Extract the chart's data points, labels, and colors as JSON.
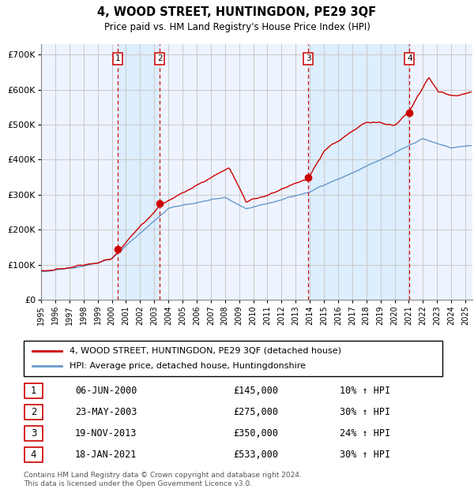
{
  "title": "4, WOOD STREET, HUNTINGDON, PE29 3QF",
  "subtitle": "Price paid vs. HM Land Registry's House Price Index (HPI)",
  "legend_line1": "4, WOOD STREET, HUNTINGDON, PE29 3QF (detached house)",
  "legend_line2": "HPI: Average price, detached house, Huntingdonshire",
  "transactions": [
    {
      "num": 1,
      "date": "06-JUN-2000",
      "year": 2000.44,
      "price": 145000,
      "pct": "10%",
      "dir": "↑"
    },
    {
      "num": 2,
      "date": "23-MAY-2003",
      "year": 2003.39,
      "price": 275000,
      "pct": "30%",
      "dir": "↑"
    },
    {
      "num": 3,
      "date": "19-NOV-2013",
      "year": 2013.88,
      "price": 350000,
      "pct": "24%",
      "dir": "↑"
    },
    {
      "num": 4,
      "date": "18-JAN-2021",
      "year": 2021.05,
      "price": 533000,
      "pct": "30%",
      "dir": "↑"
    }
  ],
  "footnote1": "Contains HM Land Registry data © Crown copyright and database right 2024.",
  "footnote2": "This data is licensed under the Open Government Licence v3.0.",
  "red_color": "#cc0000",
  "blue_color": "#6699cc",
  "span_color": "#ddeeff",
  "chart_bg": "#eef4ff",
  "grid_color": "#cccccc",
  "ylim": [
    0,
    730000
  ],
  "xlim_start": 1995.0,
  "xlim_end": 2025.5
}
